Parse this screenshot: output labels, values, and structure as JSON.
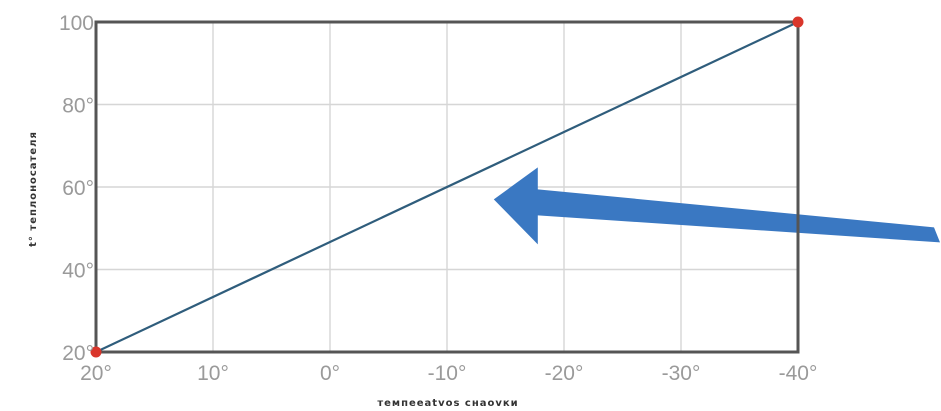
{
  "chart_data": {
    "type": "line",
    "xlabel": "тeмпeeatvos cнaovки",
    "ylabel": "t° теплоносателя",
    "x_tick_labels": [
      "20°",
      "10°",
      "0°",
      "-10°",
      "-20°",
      "-30°",
      "-40°"
    ],
    "y_tick_labels": [
      "20°",
      "40°",
      "60°",
      "80°",
      "100"
    ],
    "xlim": [
      20,
      -40
    ],
    "ylim": [
      20,
      100
    ],
    "x_ticks": [
      20,
      10,
      0,
      -10,
      -20,
      -30,
      -40
    ],
    "y_ticks": [
      20,
      40,
      60,
      80,
      100
    ],
    "grid": true,
    "series": [
      {
        "x": [
          20,
          -40
        ],
        "y": [
          20,
          100
        ],
        "color": "#2f5d7c"
      }
    ],
    "marker_color": "#d9362b",
    "annotations": [
      {
        "type": "arrow",
        "color": "#3a78c2",
        "points_to": {
          "x": -14,
          "y": 57
        },
        "direction": "left"
      }
    ]
  }
}
